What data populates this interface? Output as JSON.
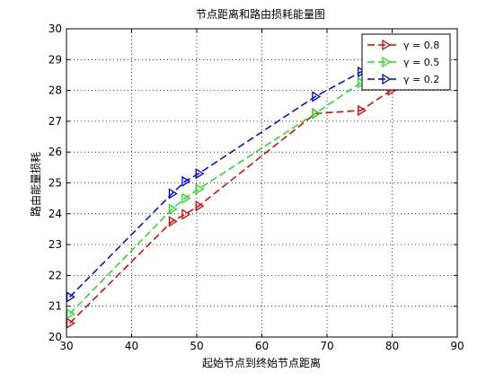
{
  "chart_data": {
    "type": "line",
    "title": "节点距离和路由损耗能量图",
    "xlabel": "起始节点到终始节点距离",
    "ylabel": "路由能量损耗",
    "xlim": [
      30,
      90
    ],
    "ylim": [
      20,
      30
    ],
    "xticks": [
      30,
      40,
      50,
      60,
      70,
      80,
      90
    ],
    "yticks": [
      20,
      21,
      22,
      23,
      24,
      25,
      26,
      27,
      28,
      29,
      30
    ],
    "grid": true,
    "legend_position": "top-right",
    "series": [
      {
        "name": "γ = 0.8",
        "color": "#e00000",
        "marker": "triangle-right",
        "line_style": "dashed",
        "x": [
          30.5,
          46.2,
          48.2,
          50.3,
          68.2,
          75.2,
          79.8
        ],
        "y": [
          20.45,
          23.75,
          23.98,
          24.25,
          27.25,
          27.35,
          28.0
        ]
      },
      {
        "name": "γ = 0.5",
        "color": "#22dd22",
        "marker": "triangle-right",
        "line_style": "dashed",
        "x": [
          30.5,
          46.2,
          48.2,
          50.3,
          68.2,
          75.2,
          79.8
        ],
        "y": [
          20.75,
          24.15,
          24.5,
          24.8,
          27.25,
          28.25,
          28.6
        ]
      },
      {
        "name": "γ = 0.2",
        "color": "#0000ee",
        "marker": "triangle-right",
        "line_style": "dashed",
        "x": [
          30.5,
          46.2,
          48.2,
          50.3,
          68.2,
          75.2,
          79.8
        ],
        "y": [
          21.3,
          24.65,
          25.05,
          25.3,
          27.8,
          28.6,
          28.75
        ]
      }
    ]
  }
}
